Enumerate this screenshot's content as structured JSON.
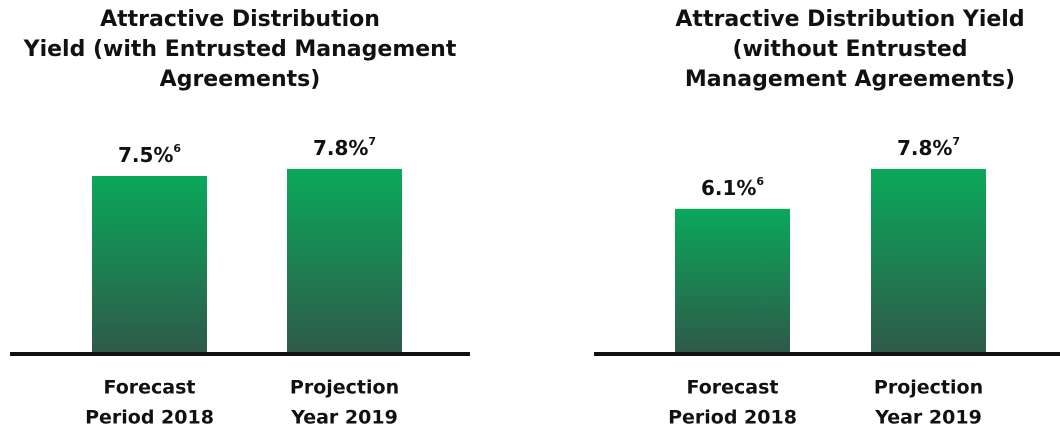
{
  "chart_data": [
    {
      "type": "bar",
      "title": [
        "Attractive Distribution",
        "Yield (with Entrusted Management",
        "Agreements)"
      ],
      "categories": [
        [
          "Forecast",
          "Period 2018"
        ],
        [
          "Projection",
          "Year 2019"
        ]
      ],
      "values": [
        7.5,
        7.8
      ],
      "value_labels": [
        "7.5%",
        "7.8%"
      ],
      "footnotes": [
        "6",
        "7"
      ],
      "gradient": [
        "#0aa85a",
        "#2e5a49"
      ]
    },
    {
      "type": "bar",
      "title": [
        "Attractive Distribution Yield",
        "(without Entrusted",
        "Management Agreements)"
      ],
      "categories": [
        [
          "Forecast",
          "Period 2018"
        ],
        [
          "Projection",
          "Year 2019"
        ]
      ],
      "values": [
        6.1,
        7.8
      ],
      "value_labels": [
        "6.1%",
        "7.8%"
      ],
      "footnotes": [
        "6",
        "7"
      ],
      "gradient": [
        "#0aa85a",
        "#2e5a49"
      ]
    }
  ]
}
